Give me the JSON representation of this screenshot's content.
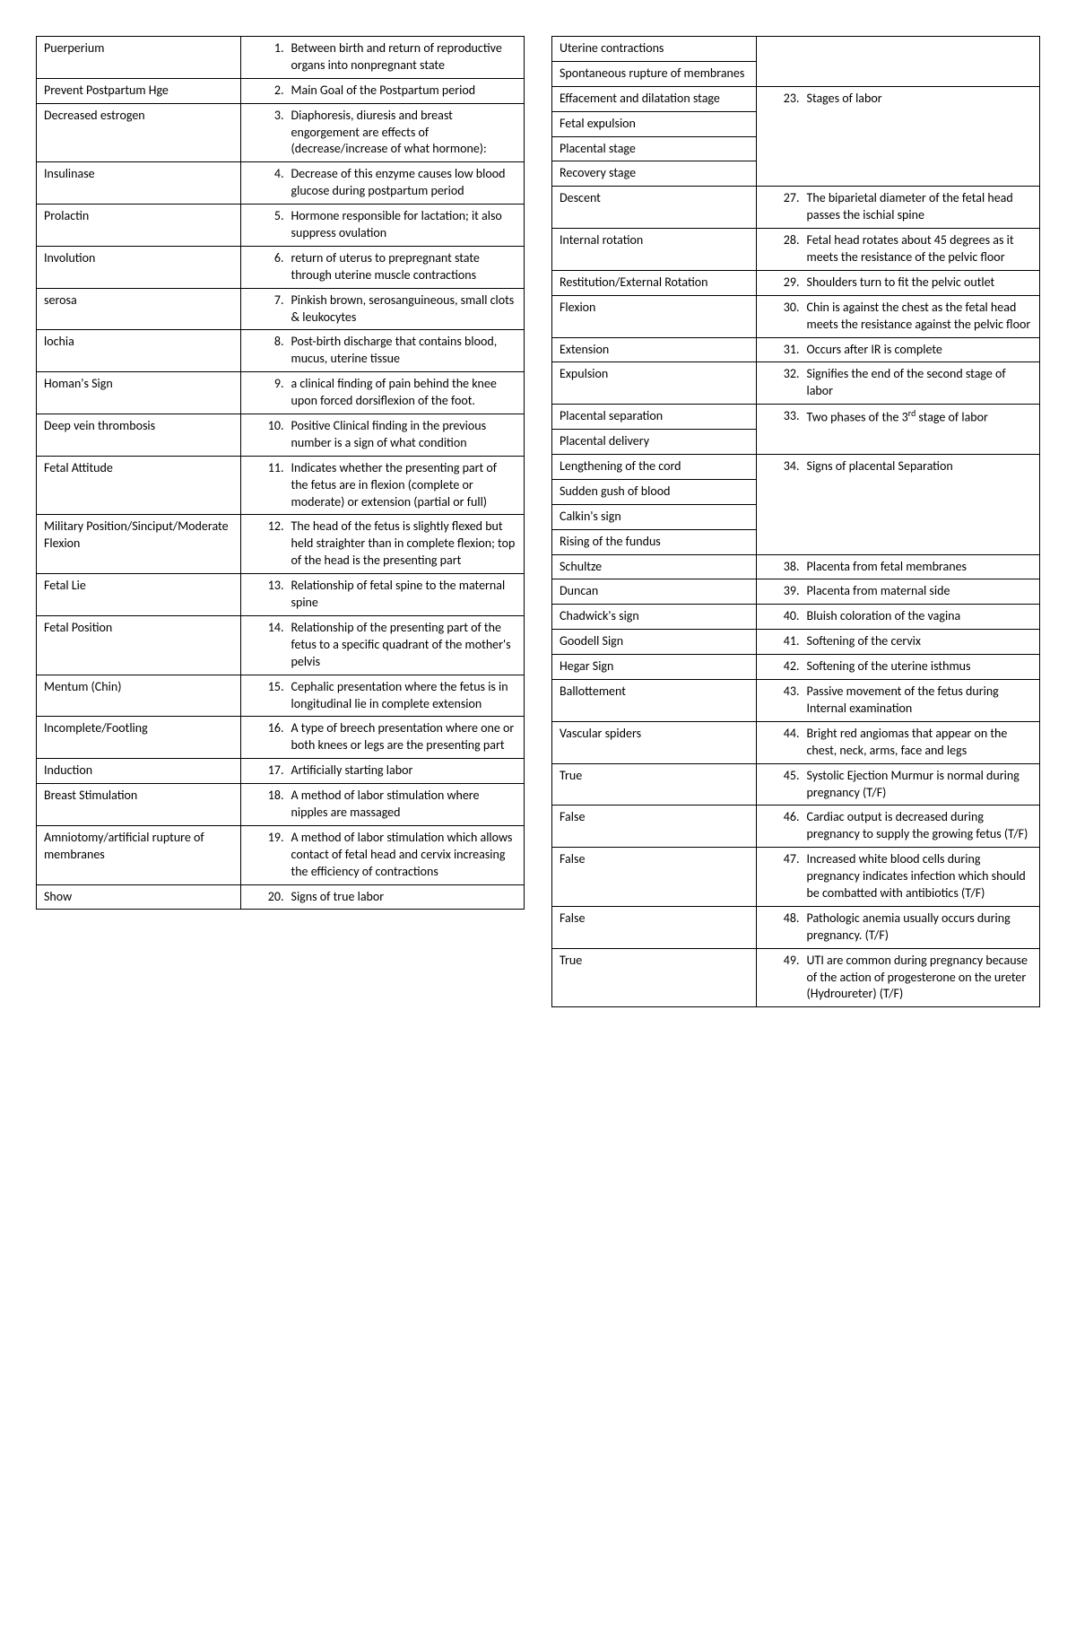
{
  "left": [
    {
      "term": "Puerperium",
      "num": "1.",
      "def": "Between birth and return of reproductive organs into nonpregnant state"
    },
    {
      "term": "Prevent Postpartum Hge",
      "num": "2.",
      "def": "Main Goal of the Postpartum period"
    },
    {
      "term": "Decreased estrogen",
      "num": "3.",
      "def": "Diaphoresis, diuresis and breast engorgement are effects of (decrease/increase of what hormone):"
    },
    {
      "term": "Insulinase",
      "num": "4.",
      "def": "Decrease of this enzyme causes low blood glucose during postpartum period"
    },
    {
      "term": "Prolactin",
      "num": "5.",
      "def": "Hormone responsible for lactation; it also suppress ovulation"
    },
    {
      "term": "Involution",
      "num": "6.",
      "def": "return of uterus to prepregnant state through uterine muscle contractions"
    },
    {
      "term": "serosa",
      "num": "7.",
      "def": "Pinkish brown, serosanguineous, small clots & leukocytes"
    },
    {
      "term": "lochia",
      "num": "8.",
      "def": "Post-birth discharge that contains blood, mucus, uterine tissue"
    },
    {
      "term": "Homan's Sign",
      "num": "9.",
      "def": "a clinical finding of pain behind the knee upon forced dorsiflexion of the foot."
    },
    {
      "term": "Deep vein thrombosis",
      "num": "10.",
      "def": "Positive Clinical finding in the previous number is a sign of what condition"
    },
    {
      "term": "Fetal Attitude",
      "num": "11.",
      "def": "Indicates whether the presenting part of the fetus are in flexion (complete or moderate) or extension (partial or full)"
    },
    {
      "term": "Military Position/Sinciput/Moderate Flexion",
      "num": "12.",
      "def": "The head of the fetus is slightly flexed but held straighter than in complete flexion; top of the head is the presenting part"
    },
    {
      "term": "Fetal Lie",
      "num": "13.",
      "def": "Relationship of fetal spine to the maternal spine"
    },
    {
      "term": "Fetal Position",
      "num": "14.",
      "def": "Relationship of the presenting part of the fetus to a specific quadrant of the mother's pelvis"
    },
    {
      "term": "Mentum (Chin)",
      "num": "15.",
      "def": "Cephalic presentation where the fetus is in longitudinal lie in complete extension"
    },
    {
      "term": "Incomplete/Footling",
      "num": "16.",
      "def": "A type of breech presentation where one or both knees or legs are the presenting part"
    },
    {
      "term": "Induction",
      "num": "17.",
      "def": "Artificially starting labor"
    },
    {
      "term": "Breast Stimulation",
      "num": "18.",
      "def": "A method of labor stimulation where nipples are massaged"
    },
    {
      "term": "Amniotomy/artificial rupture of membranes",
      "num": "19.",
      "def": "A method of labor stimulation which allows contact of fetal head and cervix increasing the efficiency of contractions"
    },
    {
      "term": "Show",
      "num": "20.",
      "def": "Signs of true labor"
    }
  ],
  "right": [
    {
      "terms": [
        "Uterine contractions",
        "Spontaneous rupture of membranes"
      ],
      "num": "",
      "def": ""
    },
    {
      "terms": [
        "Effacement and dilatation stage",
        "Fetal expulsion",
        "Placental stage",
        "Recovery stage"
      ],
      "num": "23.",
      "def": "Stages of labor"
    },
    {
      "terms": [
        "Descent"
      ],
      "num": "27.",
      "def": "The biparietal diameter of the fetal head passes the ischial spine"
    },
    {
      "terms": [
        "Internal rotation"
      ],
      "num": "28.",
      "def": "Fetal head rotates about 45 degrees as it meets the resistance of the pelvic floor"
    },
    {
      "terms": [
        "Restitution/External Rotation"
      ],
      "num": "29.",
      "def": "Shoulders turn to fit the pelvic outlet"
    },
    {
      "terms": [
        "Flexion"
      ],
      "num": "30.",
      "def": "Chin is against the chest as the fetal head meets the resistance against the pelvic floor"
    },
    {
      "terms": [
        "Extension"
      ],
      "num": "31.",
      "def": "Occurs after IR is complete"
    },
    {
      "terms": [
        "Expulsion"
      ],
      "num": "32.",
      "def": "Signifies the end of the second stage of labor"
    },
    {
      "terms": [
        "Placental separation",
        "Placental delivery"
      ],
      "num": "33.",
      "def": "Two phases of the 3<sup>rd</sup> stage of labor"
    },
    {
      "terms": [
        "Lengthening of the cord",
        "Sudden gush of blood",
        "Calkin's sign",
        "Rising of the fundus"
      ],
      "num": "34.",
      "def": "Signs of placental Separation"
    },
    {
      "terms": [
        "Schultze"
      ],
      "num": "38.",
      "def": "Placenta from fetal membranes"
    },
    {
      "terms": [
        "Duncan"
      ],
      "num": "39.",
      "def": "Placenta from maternal side"
    },
    {
      "terms": [
        "Chadwick's sign"
      ],
      "num": "40.",
      "def": "Bluish coloration of the vagina"
    },
    {
      "terms": [
        "Goodell Sign"
      ],
      "num": "41.",
      "def": "Softening of the cervix"
    },
    {
      "terms": [
        "Hegar Sign"
      ],
      "num": "42.",
      "def": "Softening of the uterine isthmus"
    },
    {
      "terms": [
        "Ballottement"
      ],
      "num": "43.",
      "def": "Passive movement of the fetus during Internal examination"
    },
    {
      "terms": [
        "Vascular spiders"
      ],
      "num": "44.",
      "def": "Bright red angiomas that appear on the chest, neck, arms, face and legs"
    },
    {
      "terms": [
        "True"
      ],
      "num": "45.",
      "def": "Systolic Ejection Murmur is normal during pregnancy (T/F)"
    },
    {
      "terms": [
        "False"
      ],
      "num": "46.",
      "def": "Cardiac output is decreased during pregnancy to supply the growing fetus (T/F)"
    },
    {
      "terms": [
        "False"
      ],
      "num": "47.",
      "def": "Increased white blood cells during pregnancy indicates infection which should be combatted with antibiotics (T/F)"
    },
    {
      "terms": [
        "False"
      ],
      "num": "48.",
      "def": "Pathologic anemia usually occurs during pregnancy. (T/F)"
    },
    {
      "terms": [
        "True"
      ],
      "num": "49.",
      "def": "UTI are common during pregnancy because of the action of progesterone on the ureter (Hydroureter) (T/F)"
    }
  ]
}
